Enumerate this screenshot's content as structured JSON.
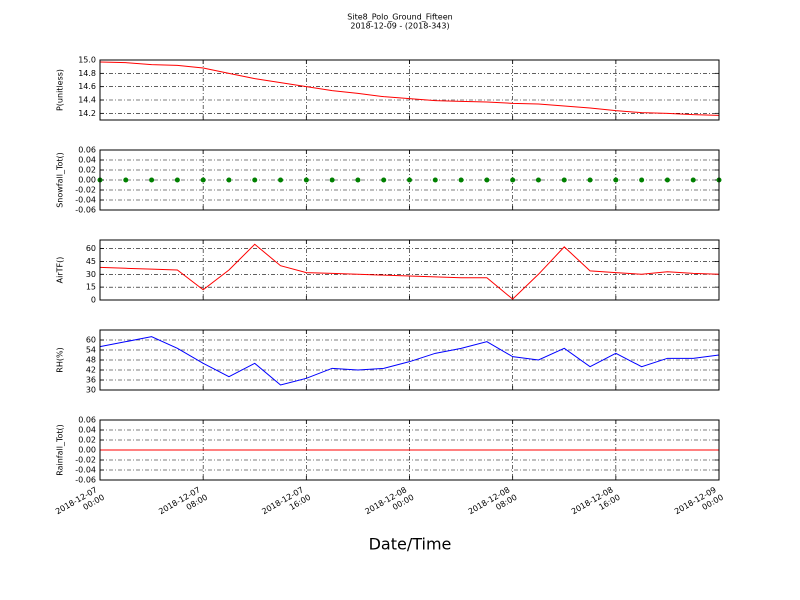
{
  "chart_data": [
    {
      "type": "line",
      "title": "Site8_Polo_Ground_Fifteen",
      "subtitle": "2018-12-09 - (2018-343)",
      "ylabel": "P(unitless)",
      "color": "#ff0000",
      "grid": true,
      "x": [
        "2018-12-07 00:00",
        "2018-12-07 02:00",
        "2018-12-07 04:00",
        "2018-12-07 06:00",
        "2018-12-07 08:00",
        "2018-12-07 10:00",
        "2018-12-07 12:00",
        "2018-12-07 14:00",
        "2018-12-07 16:00",
        "2018-12-07 18:00",
        "2018-12-07 20:00",
        "2018-12-07 22:00",
        "2018-12-08 00:00",
        "2018-12-08 02:00",
        "2018-12-08 04:00",
        "2018-12-08 06:00",
        "2018-12-08 08:00",
        "2018-12-08 10:00",
        "2018-12-08 12:00",
        "2018-12-08 14:00",
        "2018-12-08 16:00",
        "2018-12-08 18:00",
        "2018-12-08 20:00",
        "2018-12-08 22:00",
        "2018-12-09 00:00"
      ],
      "values": [
        14.97,
        14.96,
        14.93,
        14.92,
        14.88,
        14.8,
        14.72,
        14.66,
        14.6,
        14.54,
        14.5,
        14.45,
        14.42,
        14.39,
        14.38,
        14.37,
        14.35,
        14.34,
        14.31,
        14.28,
        14.24,
        14.21,
        14.2,
        14.18,
        14.17
      ],
      "xlim": [
        "2018-12-07 00:00",
        "2018-12-09 00:00"
      ],
      "xticks": [
        "2018-12-07 00:00",
        "2018-12-07 08:00",
        "2018-12-07 16:00",
        "2018-12-08 00:00",
        "2018-12-08 08:00",
        "2018-12-08 16:00",
        "2018-12-09 00:00"
      ],
      "ylim": [
        14.1,
        15.0
      ],
      "yticks": [
        14.2,
        14.4,
        14.6,
        14.8,
        {
          "value": 15,
          "label": "15.0"
        }
      ]
    },
    {
      "type": "scatter",
      "ylabel": "Snowfall_Tot()",
      "color": "#008000",
      "grid": true,
      "x": [
        "2018-12-07 00:00",
        "2018-12-07 02:00",
        "2018-12-07 04:00",
        "2018-12-07 06:00",
        "2018-12-07 08:00",
        "2018-12-07 10:00",
        "2018-12-07 12:00",
        "2018-12-07 14:00",
        "2018-12-07 16:00",
        "2018-12-07 18:00",
        "2018-12-07 20:00",
        "2018-12-07 22:00",
        "2018-12-08 00:00",
        "2018-12-08 02:00",
        "2018-12-08 04:00",
        "2018-12-08 06:00",
        "2018-12-08 08:00",
        "2018-12-08 10:00",
        "2018-12-08 12:00",
        "2018-12-08 14:00",
        "2018-12-08 16:00",
        "2018-12-08 18:00",
        "2018-12-08 20:00",
        "2018-12-08 22:00",
        "2018-12-09 00:00"
      ],
      "values": [
        0,
        0,
        0,
        0,
        0,
        0,
        0,
        0,
        0,
        0,
        0,
        0,
        0,
        0,
        0,
        0,
        0,
        0,
        0,
        0,
        0,
        0,
        0,
        0,
        0
      ],
      "xlim": [
        "2018-12-07 00:00",
        "2018-12-09 00:00"
      ],
      "xticks": [
        "2018-12-07 00:00",
        "2018-12-07 08:00",
        "2018-12-07 16:00",
        "2018-12-08 00:00",
        "2018-12-08 08:00",
        "2018-12-08 16:00",
        "2018-12-09 00:00"
      ],
      "ylim": [
        -0.06,
        0.06
      ],
      "yticks": [
        -0.06,
        -0.04,
        -0.02,
        {
          "value": 0,
          "label": "0.00"
        },
        0.02,
        0.04,
        0.06
      ]
    },
    {
      "type": "line",
      "ylabel": "AirTF()",
      "color": "#ff0000",
      "grid": true,
      "x": [
        "2018-12-07 00:00",
        "2018-12-07 02:00",
        "2018-12-07 04:00",
        "2018-12-07 06:00",
        "2018-12-07 08:00",
        "2018-12-07 10:00",
        "2018-12-07 12:00",
        "2018-12-07 14:00",
        "2018-12-07 16:00",
        "2018-12-07 18:00",
        "2018-12-07 20:00",
        "2018-12-07 22:00",
        "2018-12-08 00:00",
        "2018-12-08 02:00",
        "2018-12-08 04:00",
        "2018-12-08 06:00",
        "2018-12-08 08:00",
        "2018-12-08 10:00",
        "2018-12-08 12:00",
        "2018-12-08 14:00",
        "2018-12-08 16:00",
        "2018-12-08 18:00",
        "2018-12-08 20:00",
        "2018-12-08 22:00",
        "2018-12-09 00:00"
      ],
      "values": [
        38,
        37,
        36,
        35,
        12,
        35,
        65,
        40,
        32,
        31,
        30,
        29,
        28,
        27,
        26,
        26,
        1,
        30,
        62,
        34,
        32,
        30,
        33,
        31,
        30
      ],
      "xlim": [
        "2018-12-07 00:00",
        "2018-12-09 00:00"
      ],
      "xticks": [
        "2018-12-07 00:00",
        "2018-12-07 08:00",
        "2018-12-07 16:00",
        "2018-12-08 00:00",
        "2018-12-08 08:00",
        "2018-12-08 16:00",
        "2018-12-09 00:00"
      ],
      "ylim": [
        0,
        70
      ],
      "yticks": [
        0,
        15,
        30,
        45,
        60
      ]
    },
    {
      "type": "line",
      "ylabel": "RH(%)",
      "color": "#0000ff",
      "grid": true,
      "x": [
        "2018-12-07 00:00",
        "2018-12-07 02:00",
        "2018-12-07 04:00",
        "2018-12-07 06:00",
        "2018-12-07 08:00",
        "2018-12-07 10:00",
        "2018-12-07 12:00",
        "2018-12-07 14:00",
        "2018-12-07 16:00",
        "2018-12-07 18:00",
        "2018-12-07 20:00",
        "2018-12-07 22:00",
        "2018-12-08 00:00",
        "2018-12-08 02:00",
        "2018-12-08 04:00",
        "2018-12-08 06:00",
        "2018-12-08 08:00",
        "2018-12-08 10:00",
        "2018-12-08 12:00",
        "2018-12-08 14:00",
        "2018-12-08 16:00",
        "2018-12-08 18:00",
        "2018-12-08 20:00",
        "2018-12-08 22:00",
        "2018-12-09 00:00"
      ],
      "values": [
        56,
        59,
        62,
        55,
        46,
        38,
        46,
        33,
        37,
        43,
        42,
        43,
        47,
        52,
        55,
        59,
        50,
        48,
        55,
        44,
        52,
        44,
        49,
        49,
        51
      ],
      "xlim": [
        "2018-12-07 00:00",
        "2018-12-09 00:00"
      ],
      "xticks": [
        "2018-12-07 00:00",
        "2018-12-07 08:00",
        "2018-12-07 16:00",
        "2018-12-08 00:00",
        "2018-12-08 08:00",
        "2018-12-08 16:00",
        "2018-12-09 00:00"
      ],
      "ylim": [
        30,
        66
      ],
      "yticks": [
        30,
        36,
        42,
        48,
        54,
        60
      ]
    },
    {
      "type": "line",
      "ylabel": "Rainfall_Tot()",
      "xlabel": "Date/Time",
      "color": "#ff0000",
      "grid": true,
      "x": [
        "2018-12-07 00:00",
        "2018-12-07 02:00",
        "2018-12-07 04:00",
        "2018-12-07 06:00",
        "2018-12-07 08:00",
        "2018-12-07 10:00",
        "2018-12-07 12:00",
        "2018-12-07 14:00",
        "2018-12-07 16:00",
        "2018-12-07 18:00",
        "2018-12-07 20:00",
        "2018-12-07 22:00",
        "2018-12-08 00:00",
        "2018-12-08 02:00",
        "2018-12-08 04:00",
        "2018-12-08 06:00",
        "2018-12-08 08:00",
        "2018-12-08 10:00",
        "2018-12-08 12:00",
        "2018-12-08 14:00",
        "2018-12-08 16:00",
        "2018-12-08 18:00",
        "2018-12-08 20:00",
        "2018-12-08 22:00",
        "2018-12-09 00:00"
      ],
      "values": [
        0,
        0,
        0,
        0,
        0,
        0,
        0,
        0,
        0,
        0,
        0,
        0,
        0,
        0,
        0,
        0,
        0,
        0,
        0,
        0,
        0,
        0,
        0,
        0,
        0
      ],
      "xlim": [
        "2018-12-07 00:00",
        "2018-12-09 00:00"
      ],
      "xticks": [
        "2018-12-07 00:00",
        "2018-12-07 08:00",
        "2018-12-07 16:00",
        "2018-12-08 00:00",
        "2018-12-08 08:00",
        "2018-12-08 16:00",
        "2018-12-09 00:00"
      ],
      "ylim": [
        -0.06,
        0.06
      ],
      "yticks": [
        -0.06,
        -0.04,
        -0.02,
        {
          "value": 0,
          "label": "0.00"
        },
        0.02,
        0.04,
        0.06
      ]
    }
  ]
}
